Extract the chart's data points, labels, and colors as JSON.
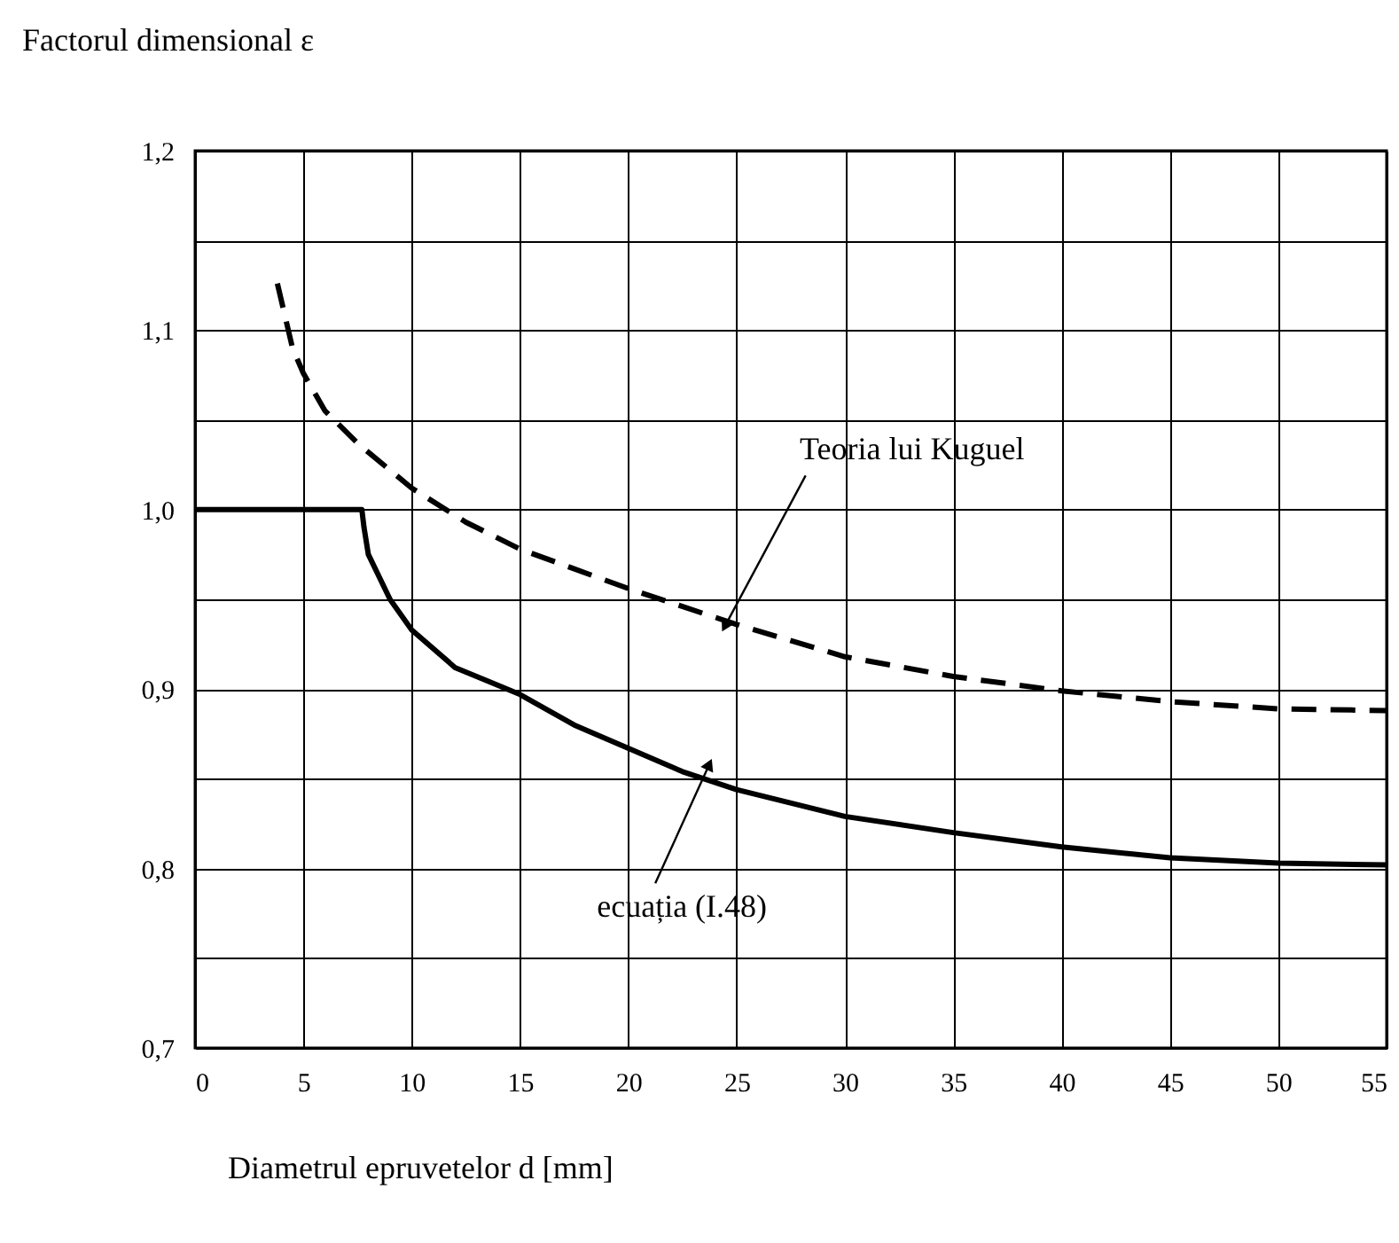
{
  "chart_data": {
    "type": "line",
    "xlabel": "Diametrul epruvetelor  d [mm]",
    "ylabel": "Factorul dimensional ε",
    "xlim": [
      0,
      55
    ],
    "xticks": [
      0,
      5,
      10,
      15,
      20,
      25,
      30,
      35,
      40,
      45,
      50,
      55
    ],
    "ylim": [
      0.7,
      1.2
    ],
    "yticks": [
      {
        "value": 0.7,
        "label": "0,7"
      },
      {
        "value": 0.75,
        "label": null
      },
      {
        "value": 0.8,
        "label": "0,8"
      },
      {
        "value": 0.85,
        "label": null
      },
      {
        "value": 0.9,
        "label": "0,9"
      },
      {
        "value": 0.95,
        "label": null
      },
      {
        "value": 1.0,
        "label": "1,0"
      },
      {
        "value": 1.05,
        "label": null
      },
      {
        "value": 1.1,
        "label": "1,1"
      },
      {
        "value": 1.15,
        "label": null
      },
      {
        "value": 1.2,
        "label": "1,2"
      }
    ],
    "grid": true,
    "marker": "none",
    "series": [
      {
        "color": "#000000",
        "line_style": "solid",
        "x": [
          0,
          7.7,
          7.8,
          8,
          9,
          10,
          12,
          15,
          17.5,
          20,
          22.5,
          25,
          30,
          35,
          40,
          45,
          50,
          55
        ],
        "values": [
          1.0,
          1.0,
          0.99,
          0.975,
          0.95,
          0.933,
          0.912,
          0.897,
          0.88,
          0.867,
          0.854,
          0.844,
          0.829,
          0.82,
          0.812,
          0.806,
          0.803,
          0.802
        ]
      },
      {
        "color": "#000000",
        "line_style": "dashed",
        "x": [
          3.8,
          4.5,
          5,
          6,
          7.5,
          10,
          12.5,
          15,
          20,
          25,
          30,
          35,
          40,
          45,
          50,
          55
        ],
        "values": [
          1.126,
          1.09,
          1.076,
          1.055,
          1.037,
          1.012,
          0.993,
          0.978,
          0.956,
          0.936,
          0.918,
          0.907,
          0.899,
          0.893,
          0.889,
          0.888
        ]
      }
    ],
    "annotations": [
      {
        "text": "Teoria lui Kuguel",
        "x": 24.5,
        "y": 0.936
      },
      {
        "text": "ecuația  (I.48)",
        "x": 23.7,
        "y": 0.857
      }
    ]
  }
}
